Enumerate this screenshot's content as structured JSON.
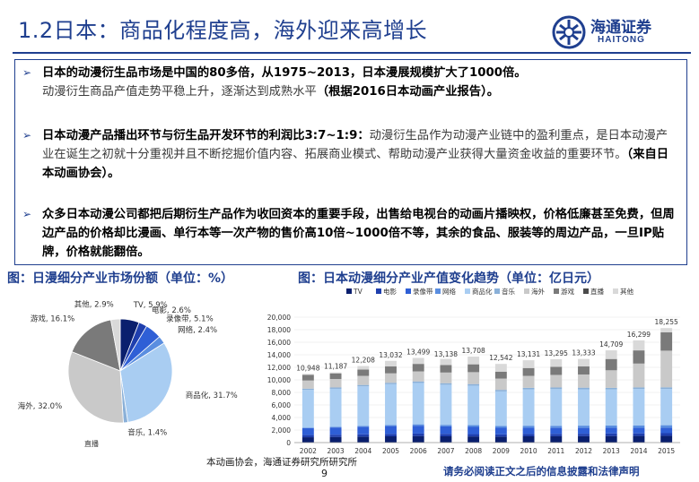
{
  "header": {
    "title": "1.2日本：商品化程度高，海外迎来高增长",
    "logo_cn": "海通证券",
    "logo_en": "HAITONG"
  },
  "bullets": [
    {
      "bold": "日本的动漫衍生品市场是中国的80多倍，从1975~2013，日本漫展规模扩大了1000倍。",
      "normal": "动漫衍生商品产值走势平稳上升，逐渐达到成熟水平",
      "bold2": "（根据2016日本动画产业报告）。"
    },
    {
      "bold": "日本动漫产品播出环节与衍生品开发环节的利润比3:7~1:9：",
      "normal": "动漫衍生品作为动漫产业链中的盈利重点，是日本动漫产业在诞生之初就十分重视并且不断挖掘价值内容、拓展商业模式、帮助动漫产业获得大量资金收益的重要环节。",
      "bold2": "（来自日本动画协会）。"
    },
    {
      "bold": "众多日本动漫公司都把后期衍生产品作为收回资本的重要手段，出售给电视台的动画片播映权，价格低廉甚至免费，但周边产品的价格却比漫画、单行本等一次产物的售价高10倍~1000倍不等，其余的食品、服装等的周边产品，一旦IP贴牌，价格就能翻倍。",
      "normal": "",
      "bold2": ""
    }
  ],
  "captions": {
    "left": "图：日漫细分产业市场份额（单位：%）",
    "right": "图：日本动漫细分产业产值变化趋势（单位：亿日元）"
  },
  "chart_data": [
    {
      "type": "pie",
      "title": "",
      "categories": [
        "TV",
        "电影",
        "录像带",
        "网络",
        "商品化",
        "音乐",
        "海外",
        "游戏",
        "直播",
        "其他"
      ],
      "values": [
        5.9,
        2.6,
        5.1,
        2.4,
        31.7,
        1.4,
        32.0,
        16.1,
        0.0,
        2.9
      ],
      "labels": [
        "TV, 5.9%",
        "电影, 2.6%",
        "录像带, 5.1%",
        "网络, 2.4%",
        "商品化, 31.7%",
        "音乐, 1.4%",
        "海外, 32.0%",
        "游戏, 16.1%",
        "直播",
        "其他, 2.9%"
      ],
      "colors": [
        "#0a1f6e",
        "#1f3fae",
        "#2f5fd6",
        "#5a8ee0",
        "#a9cdf2",
        "#8ab0d8",
        "#c9c9c9",
        "#7a7a7a",
        "#4a4a4a",
        "#d9d9d9"
      ]
    },
    {
      "type": "bar",
      "title": "",
      "legend": [
        "TV",
        "电影",
        "录像带",
        "网络",
        "商品化",
        "音乐",
        "海外",
        "游戏",
        "直播",
        "其他"
      ],
      "colors": [
        "#0a1f6e",
        "#1f3fae",
        "#2f5fd6",
        "#5a8ee0",
        "#a9cdf2",
        "#8ab0d8",
        "#c9c9c9",
        "#7a7a7a",
        "#4a4a4a",
        "#d9d9d9"
      ],
      "categories": [
        "2002",
        "2003",
        "2004",
        "2005",
        "2006",
        "2007",
        "2008",
        "2009",
        "2010",
        "2011",
        "2012",
        "2013",
        "2014",
        "2015"
      ],
      "totals": [
        10948,
        11187,
        12208,
        13032,
        13499,
        13138,
        13708,
        12542,
        13131,
        13295,
        13333,
        14709,
        16299,
        18255
      ],
      "total_labels": [
        "10,948",
        "11,187",
        "12,208",
        "13,032",
        "13,499",
        "13,138",
        "13,708",
        "12,542",
        "13,131",
        "13,295",
        "13,333",
        "14,709",
        "16,299",
        "18,255"
      ],
      "series": [
        {
          "name": "TV",
          "values": [
            850,
            900,
            950,
            1000,
            1050,
            1000,
            980,
            950,
            1000,
            1010,
            1020,
            1050,
            1060,
            1080
          ]
        },
        {
          "name": "电影",
          "values": [
            350,
            360,
            370,
            380,
            390,
            380,
            370,
            360,
            370,
            380,
            390,
            400,
            410,
            420
          ]
        },
        {
          "name": "录像带",
          "values": [
            1100,
            1150,
            1200,
            1250,
            1250,
            1200,
            1150,
            1050,
            1000,
            950,
            930,
            900,
            880,
            850
          ]
        },
        {
          "name": "网络",
          "values": [
            100,
            120,
            150,
            180,
            220,
            250,
            280,
            300,
            320,
            340,
            360,
            380,
            400,
            420
          ]
        },
        {
          "name": "商品化",
          "values": [
            6000,
            6050,
            6300,
            6500,
            6600,
            6400,
            6300,
            5500,
            5800,
            5850,
            5800,
            5750,
            5800,
            5790
          ]
        },
        {
          "name": "音乐",
          "values": [
            200,
            210,
            220,
            230,
            240,
            240,
            250,
            250,
            250,
            260,
            260,
            250,
            250,
            255
          ]
        },
        {
          "name": "海外",
          "values": [
            1300,
            1350,
            1450,
            1500,
            1600,
            1700,
            1900,
            1800,
            1900,
            2000,
            2100,
            2800,
            3800,
            5840
          ]
        },
        {
          "name": "游戏",
          "values": [
            900,
            900,
            1000,
            1100,
            1200,
            1200,
            1250,
            1100,
            1250,
            1300,
            1280,
            1800,
            2100,
            2940
          ]
        },
        {
          "name": "直播",
          "values": [
            0,
            0,
            0,
            0,
            0,
            0,
            0,
            0,
            0,
            0,
            0,
            0,
            0,
            0
          ]
        },
        {
          "name": "其他",
          "values": [
            148,
            147,
            568,
            892,
            949,
            968,
            1228,
            1232,
            1241,
            1205,
            1193,
            1379,
            1599,
            660
          ]
        }
      ],
      "ylim": [
        0,
        20000
      ],
      "yticks": [
        0,
        2000,
        4000,
        6000,
        8000,
        10000,
        12000,
        14000,
        16000,
        18000,
        20000
      ],
      "ytick_labels": [
        "0",
        "2,000",
        "4,000",
        "6,000",
        "8,000",
        "10,000",
        "12,000",
        "14,000",
        "16,000",
        "18,000",
        "20,000"
      ]
    }
  ],
  "footer": {
    "source": "本动画协会，海通证券研究所研究所",
    "page": "9",
    "disclaimer": "请务必阅读正文之后的信息披露和法律声明"
  }
}
